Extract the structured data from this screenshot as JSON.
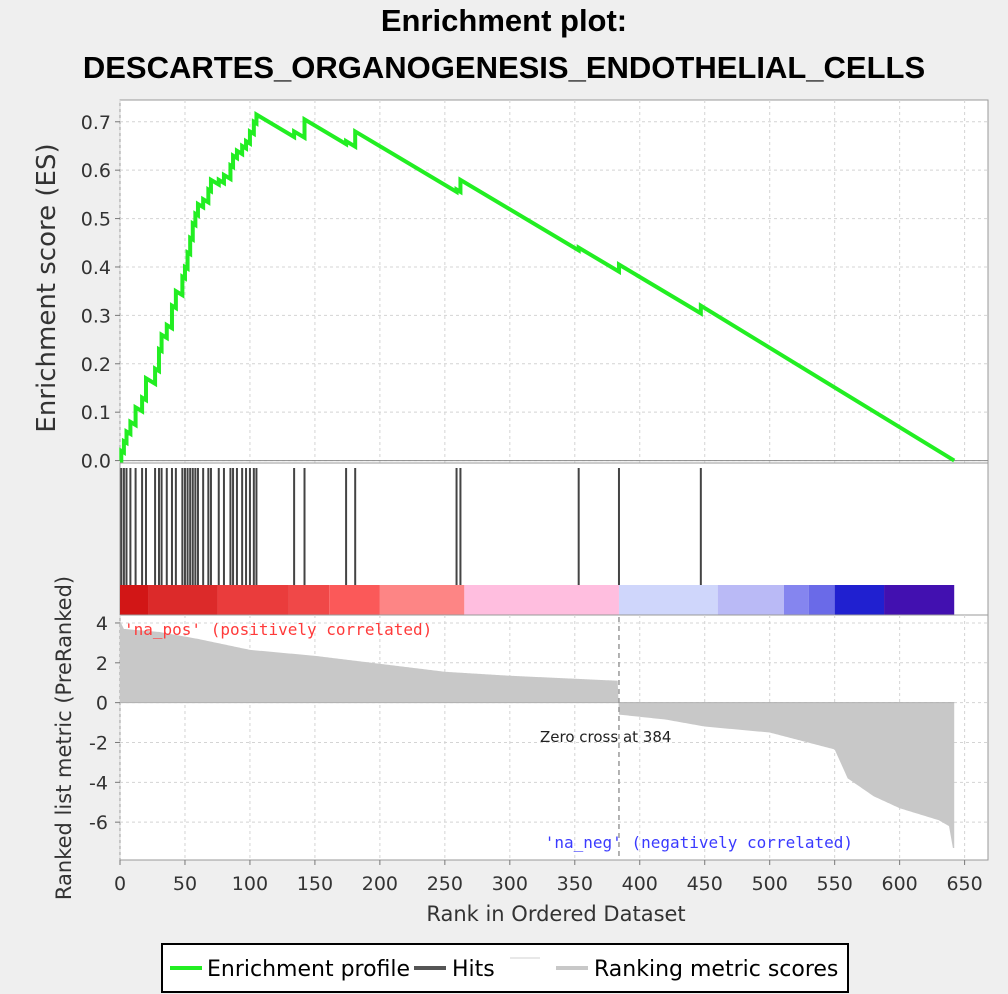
{
  "chart_data": {
    "type": "line",
    "title_line1": "Enrichment plot:",
    "title_line2": "DESCARTES_ORGANOGENESIS_ENDOTHELIAL_CELLS",
    "xlabel": "Rank in Ordered Dataset",
    "ylabel_top": "Enrichment score (ES)",
    "ylabel_bottom": "Ranked list metric (PreRanked)",
    "xlim": [
      0,
      668
    ],
    "x_ticks": [
      "0",
      "50",
      "100",
      "150",
      "200",
      "250",
      "300",
      "350",
      "400",
      "450",
      "500",
      "550",
      "600",
      "650"
    ],
    "es_ylim": [
      -0.005,
      0.745
    ],
    "es_ticks": [
      "0.0",
      "0.1",
      "0.2",
      "0.3",
      "0.4",
      "0.5",
      "0.6",
      "0.7"
    ],
    "metric_ylim": [
      -7.9,
      4.4
    ],
    "metric_ticks": [
      "4",
      "2",
      "0",
      "-2",
      "-4",
      "-6"
    ],
    "n_genes": 642,
    "zero_cross_rank": 384,
    "zero_cross_label": "Zero cross at 384",
    "pos_label": "'na_pos' (positively correlated)",
    "neg_label": "'na_neg' (negatively correlated)",
    "hits": [
      1,
      3,
      5,
      8,
      12,
      17,
      20,
      27,
      30,
      32,
      36,
      40,
      43,
      48,
      50,
      52,
      54,
      56,
      58,
      60,
      64,
      68,
      70,
      76,
      80,
      85,
      87,
      90,
      94,
      97,
      100,
      103,
      105,
      134,
      142,
      174,
      181,
      259,
      262,
      353,
      384,
      447
    ],
    "series": [
      {
        "name": "Enrichment profile",
        "color": "#22ee22",
        "points": [
          [
            0,
            0
          ],
          [
            1,
            0.02
          ],
          [
            3,
            0.04
          ],
          [
            5,
            0.06
          ],
          [
            8,
            0.08
          ],
          [
            12,
            0.11
          ],
          [
            17,
            0.13
          ],
          [
            20,
            0.17
          ],
          [
            27,
            0.19
          ],
          [
            30,
            0.23
          ],
          [
            32,
            0.26
          ],
          [
            36,
            0.28
          ],
          [
            40,
            0.32
          ],
          [
            43,
            0.35
          ],
          [
            48,
            0.38
          ],
          [
            50,
            0.4
          ],
          [
            52,
            0.43
          ],
          [
            54,
            0.46
          ],
          [
            56,
            0.49
          ],
          [
            58,
            0.51
          ],
          [
            60,
            0.53
          ],
          [
            64,
            0.54
          ],
          [
            68,
            0.56
          ],
          [
            70,
            0.58
          ],
          [
            76,
            0.58
          ],
          [
            80,
            0.59
          ],
          [
            85,
            0.61
          ],
          [
            87,
            0.63
          ],
          [
            90,
            0.64
          ],
          [
            94,
            0.65
          ],
          [
            97,
            0.66
          ],
          [
            100,
            0.68
          ],
          [
            103,
            0.7
          ],
          [
            105,
            0.715
          ],
          [
            134,
            0.68
          ],
          [
            142,
            0.705
          ],
          [
            174,
            0.66
          ],
          [
            181,
            0.68
          ],
          [
            259,
            0.56
          ],
          [
            262,
            0.58
          ],
          [
            353,
            0.44
          ],
          [
            384,
            0.405
          ],
          [
            447,
            0.32
          ],
          [
            642,
            0
          ]
        ]
      },
      {
        "name": "Hits",
        "color": "#555555"
      },
      {
        "name": "Ranking metric scores",
        "color": "#c8c8c8",
        "profile": [
          [
            0,
            4.1
          ],
          [
            3,
            3.7
          ],
          [
            30,
            3.55
          ],
          [
            60,
            3.2
          ],
          [
            100,
            2.65
          ],
          [
            150,
            2.35
          ],
          [
            200,
            1.95
          ],
          [
            250,
            1.55
          ],
          [
            300,
            1.35
          ],
          [
            350,
            1.2
          ],
          [
            383,
            1.1
          ],
          [
            384,
            -0.6
          ],
          [
            420,
            -0.85
          ],
          [
            450,
            -1.2
          ],
          [
            500,
            -1.5
          ],
          [
            550,
            -2.35
          ],
          [
            560,
            -3.8
          ],
          [
            580,
            -4.7
          ],
          [
            600,
            -5.3
          ],
          [
            630,
            -5.9
          ],
          [
            638,
            -6.2
          ],
          [
            641,
            -7.3
          ]
        ]
      }
    ],
    "colorbar": [
      {
        "from": 0,
        "to": 22,
        "color": "#d21616"
      },
      {
        "from": 22,
        "to": 75,
        "color": "#dc2a2a"
      },
      {
        "from": 75,
        "to": 130,
        "color": "#ea3c3c"
      },
      {
        "from": 130,
        "to": 161,
        "color": "#f04848"
      },
      {
        "from": 161,
        "to": 200,
        "color": "#fb5959"
      },
      {
        "from": 200,
        "to": 265,
        "color": "#fd8585"
      },
      {
        "from": 265,
        "to": 384,
        "color": "#ffbedf"
      },
      {
        "from": 384,
        "to": 460,
        "color": "#cfd6fb"
      },
      {
        "from": 460,
        "to": 511,
        "color": "#babaf6"
      },
      {
        "from": 511,
        "to": 530,
        "color": "#8585ef"
      },
      {
        "from": 530,
        "to": 550,
        "color": "#6a6ae8"
      },
      {
        "from": 550,
        "to": 588,
        "color": "#2020d0"
      },
      {
        "from": 588,
        "to": 642,
        "color": "#4210b0"
      }
    ],
    "legend": {
      "entries": [
        "Enrichment profile",
        "Hits",
        "Ranking metric scores"
      ],
      "placement": "bottom-center"
    }
  }
}
